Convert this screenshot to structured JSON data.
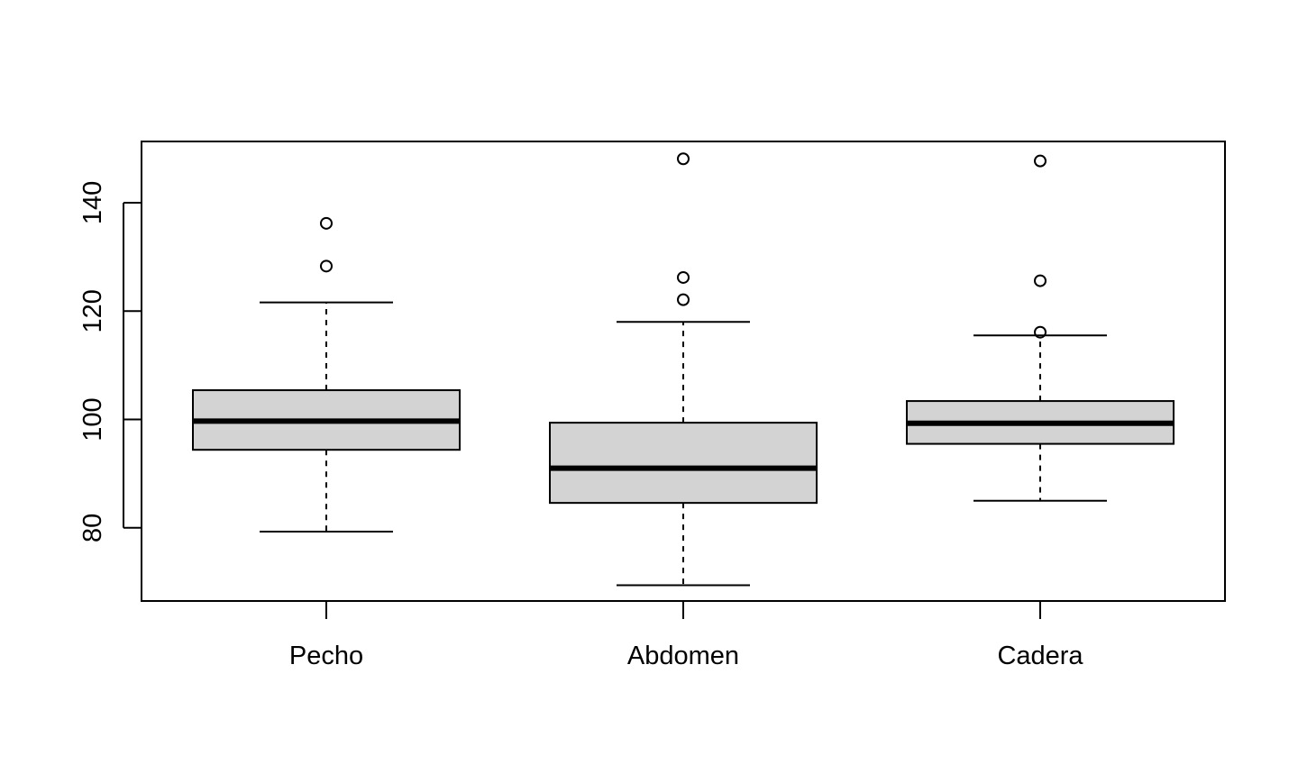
{
  "chart_data": {
    "type": "boxplot",
    "title": "",
    "xlabel": "",
    "ylabel": "",
    "categories": [
      "Pecho",
      "Abdomen",
      "Cadera"
    ],
    "ylim": [
      66.5,
      151.3
    ],
    "yticks": [
      80,
      100,
      120,
      140
    ],
    "ytick_labels": [
      "80",
      "100",
      "120",
      "140"
    ],
    "grid": false,
    "legend": "none",
    "box_fill": "#d3d3d3",
    "line_color": "#000000",
    "boxes": [
      {
        "category": "Pecho",
        "whisker_low": 79.3,
        "q1": 94.4,
        "median": 99.7,
        "q3": 105.4,
        "whisker_high": 121.6,
        "outliers": [
          128.3,
          136.2
        ]
      },
      {
        "category": "Abdomen",
        "whisker_low": 69.4,
        "q1": 84.6,
        "median": 91.0,
        "q3": 99.4,
        "whisker_high": 118.0,
        "outliers": [
          122.1,
          126.2,
          148.1
        ]
      },
      {
        "category": "Cadera",
        "whisker_low": 85.0,
        "q1": 95.5,
        "median": 99.3,
        "q3": 103.4,
        "whisker_high": 115.5,
        "outliers": [
          116.1,
          125.6,
          147.7
        ]
      }
    ]
  }
}
